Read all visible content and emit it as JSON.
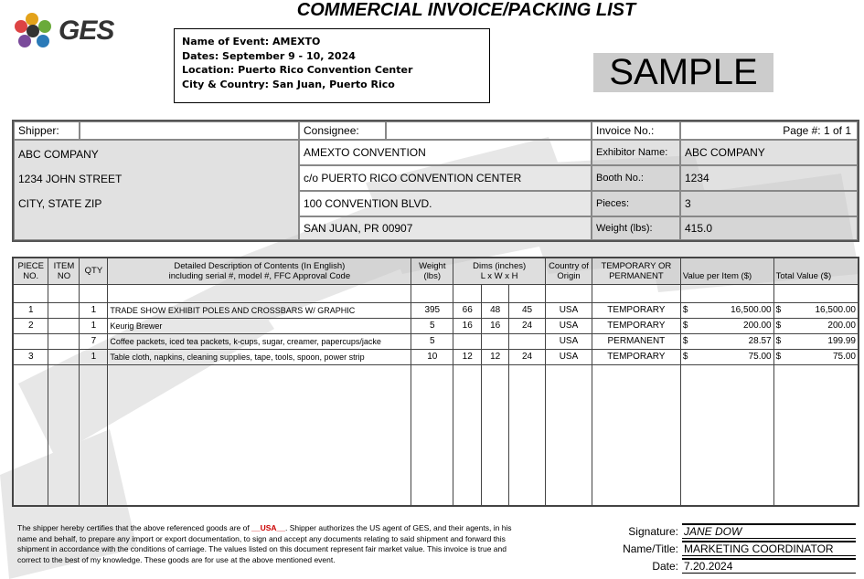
{
  "title": "COMMERCIAL INVOICE/PACKING LIST",
  "logo": "GES",
  "event": {
    "name": "Name of Event: AMEXTO",
    "dates": "Dates:  September 9 - 10, 2024",
    "location": "Location:  Puerto Rico Convention Center",
    "city": "City & Country: San Juan, Puerto Rico"
  },
  "sample_label": "SAMPLE",
  "shipper": {
    "label": "Shipper:",
    "lines": [
      "ABC COMPANY",
      "1234 JOHN STREET",
      "CITY, STATE ZIP"
    ]
  },
  "consignee": {
    "label": "Consignee:",
    "lines": [
      "AMEXTO CONVENTION",
      "c/o PUERTO RICO CONVENTION CENTER",
      "100 CONVENTION BLVD.",
      "SAN JUAN, PR 00907"
    ]
  },
  "invoice": {
    "label": "Invoice No.:",
    "value": "",
    "page": "Page #: 1  of  1",
    "exhibitor_label": "Exhibitor Name:",
    "exhibitor": "ABC COMPANY",
    "booth_label": "Booth No.:",
    "booth": "1234",
    "pieces_label": "Pieces:",
    "pieces": "3",
    "weight_label": "Weight (lbs):",
    "weight": "415.0"
  },
  "table": {
    "headers": [
      "PIECE NO.",
      "ITEM NO",
      "QTY",
      "Detailed Description of Contents (In English)",
      "including serial #, model #, FFC Approval Code",
      "Weight (lbs)",
      "Dims (inches)",
      "L x W x H",
      "Country of Origin",
      "TEMPORARY OR PERMANENT",
      "Value per Item ($)",
      "Total Value ($)"
    ],
    "rows": [
      {
        "piece": "1",
        "item": "",
        "qty": "1",
        "desc": "TRADE SHOW EXHIBIT POLES AND CROSSBARS W/ GRAPHIC",
        "weight": "395",
        "l": "66",
        "w": "48",
        "h": "45",
        "country": "USA",
        "temp": "TEMPORARY",
        "cur": "$",
        "value": "16,500.00",
        "cur2": "$",
        "total": "16,500.00"
      },
      {
        "piece": "2",
        "item": "",
        "qty": "1",
        "desc": "Keurig Brewer",
        "weight": "5",
        "l": "16",
        "w": "16",
        "h": "24",
        "country": "USA",
        "temp": "TEMPORARY",
        "cur": "$",
        "value": "200.00",
        "cur2": "$",
        "total": "200.00"
      },
      {
        "piece": "",
        "item": "",
        "qty": "7",
        "desc": "Coffee packets, iced tea packets, k-cups, sugar, creamer, papercups/jacke",
        "weight": "5",
        "l": "",
        "w": "",
        "h": "",
        "country": "USA",
        "temp": "PERMANENT",
        "cur": "$",
        "value": "28.57",
        "cur2": "$",
        "total": "199.99"
      },
      {
        "piece": "3",
        "item": "",
        "qty": "1",
        "desc": "Table cloth, napkins, cleaning supplies, tape, tools, spoon, power strip",
        "weight": "10",
        "l": "12",
        "w": "12",
        "h": "24",
        "country": "USA",
        "temp": "TEMPORARY",
        "cur": "$",
        "value": "75.00",
        "cur2": "$",
        "total": "75.00"
      }
    ]
  },
  "footer": {
    "text1": "The shipper hereby certifies that the above referenced goods are of ",
    "origin": "__USA__",
    "text2": ".  Shipper authorizes the US agent of GES, and their agents, in his name and behalf, to prepare any import or export documentation, to sign and accept any documents relating to said shipment and forward this shipment in accordance with the conditions of carriage.  The values listed on this document represent fair market value.  This invoice is true and correct to the best of my knowledge.  These goods are for use at the above mentioned event."
  },
  "signature": {
    "sig_label": "Signature:",
    "sig": "JANE DOW",
    "name_label": "Name/Title:",
    "name": "MARKETING COORDINATOR",
    "date_label": "Date:",
    "date": "7.20.2024"
  }
}
